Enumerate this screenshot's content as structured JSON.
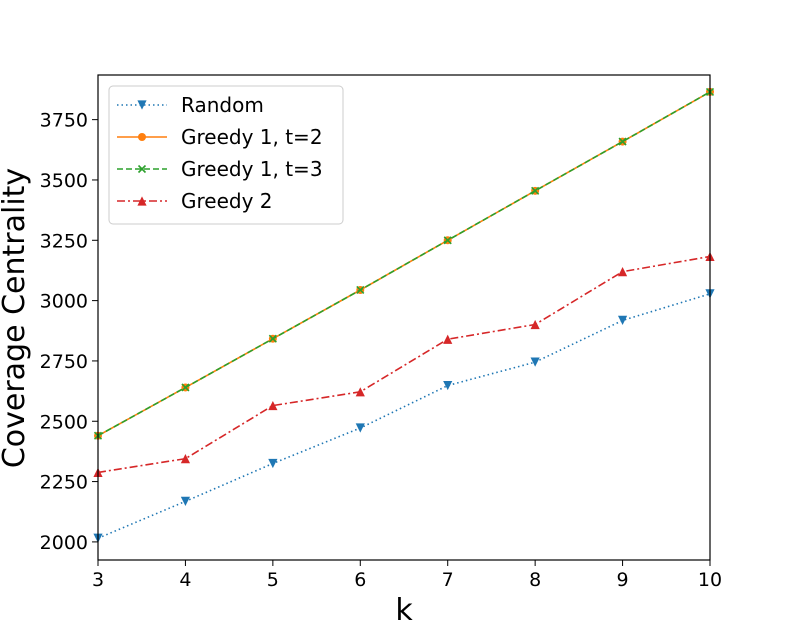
{
  "chart_data": {
    "type": "line",
    "xlabel": "k",
    "ylabel": "Coverage Centrality",
    "x": [
      3,
      4,
      5,
      6,
      7,
      8,
      9,
      10
    ],
    "xlim": [
      3,
      10
    ],
    "ylim": [
      1925,
      3935
    ],
    "xticks": [
      "3",
      "4",
      "5",
      "6",
      "7",
      "8",
      "9",
      "10"
    ],
    "yticks": [
      "2000",
      "2250",
      "2500",
      "2750",
      "3000",
      "3250",
      "3500",
      "3750"
    ],
    "grid": false,
    "legend_position": "top-left",
    "series": [
      {
        "name": "Random",
        "color": "#1f77b4",
        "line_style": "dotted",
        "marker": "triangle-down",
        "values": [
          2015,
          2168,
          2325,
          2472,
          2648,
          2745,
          2918,
          3028
        ]
      },
      {
        "name": "Greedy 1, t=2",
        "color": "#ff7f0e",
        "line_style": "solid",
        "marker": "circle",
        "values": [
          2440,
          2640,
          2842,
          3044,
          3250,
          3455,
          3659,
          3865
        ]
      },
      {
        "name": "Greedy 1, t=3",
        "color": "#2ca02c",
        "line_style": "dashed",
        "marker": "x",
        "values": [
          2440,
          2640,
          2842,
          3044,
          3250,
          3455,
          3659,
          3865
        ]
      },
      {
        "name": "Greedy 2",
        "color": "#d62728",
        "line_style": "dashdot",
        "marker": "triangle-up",
        "values": [
          2288,
          2345,
          2565,
          2622,
          2840,
          2901,
          3120,
          3183
        ]
      }
    ]
  }
}
